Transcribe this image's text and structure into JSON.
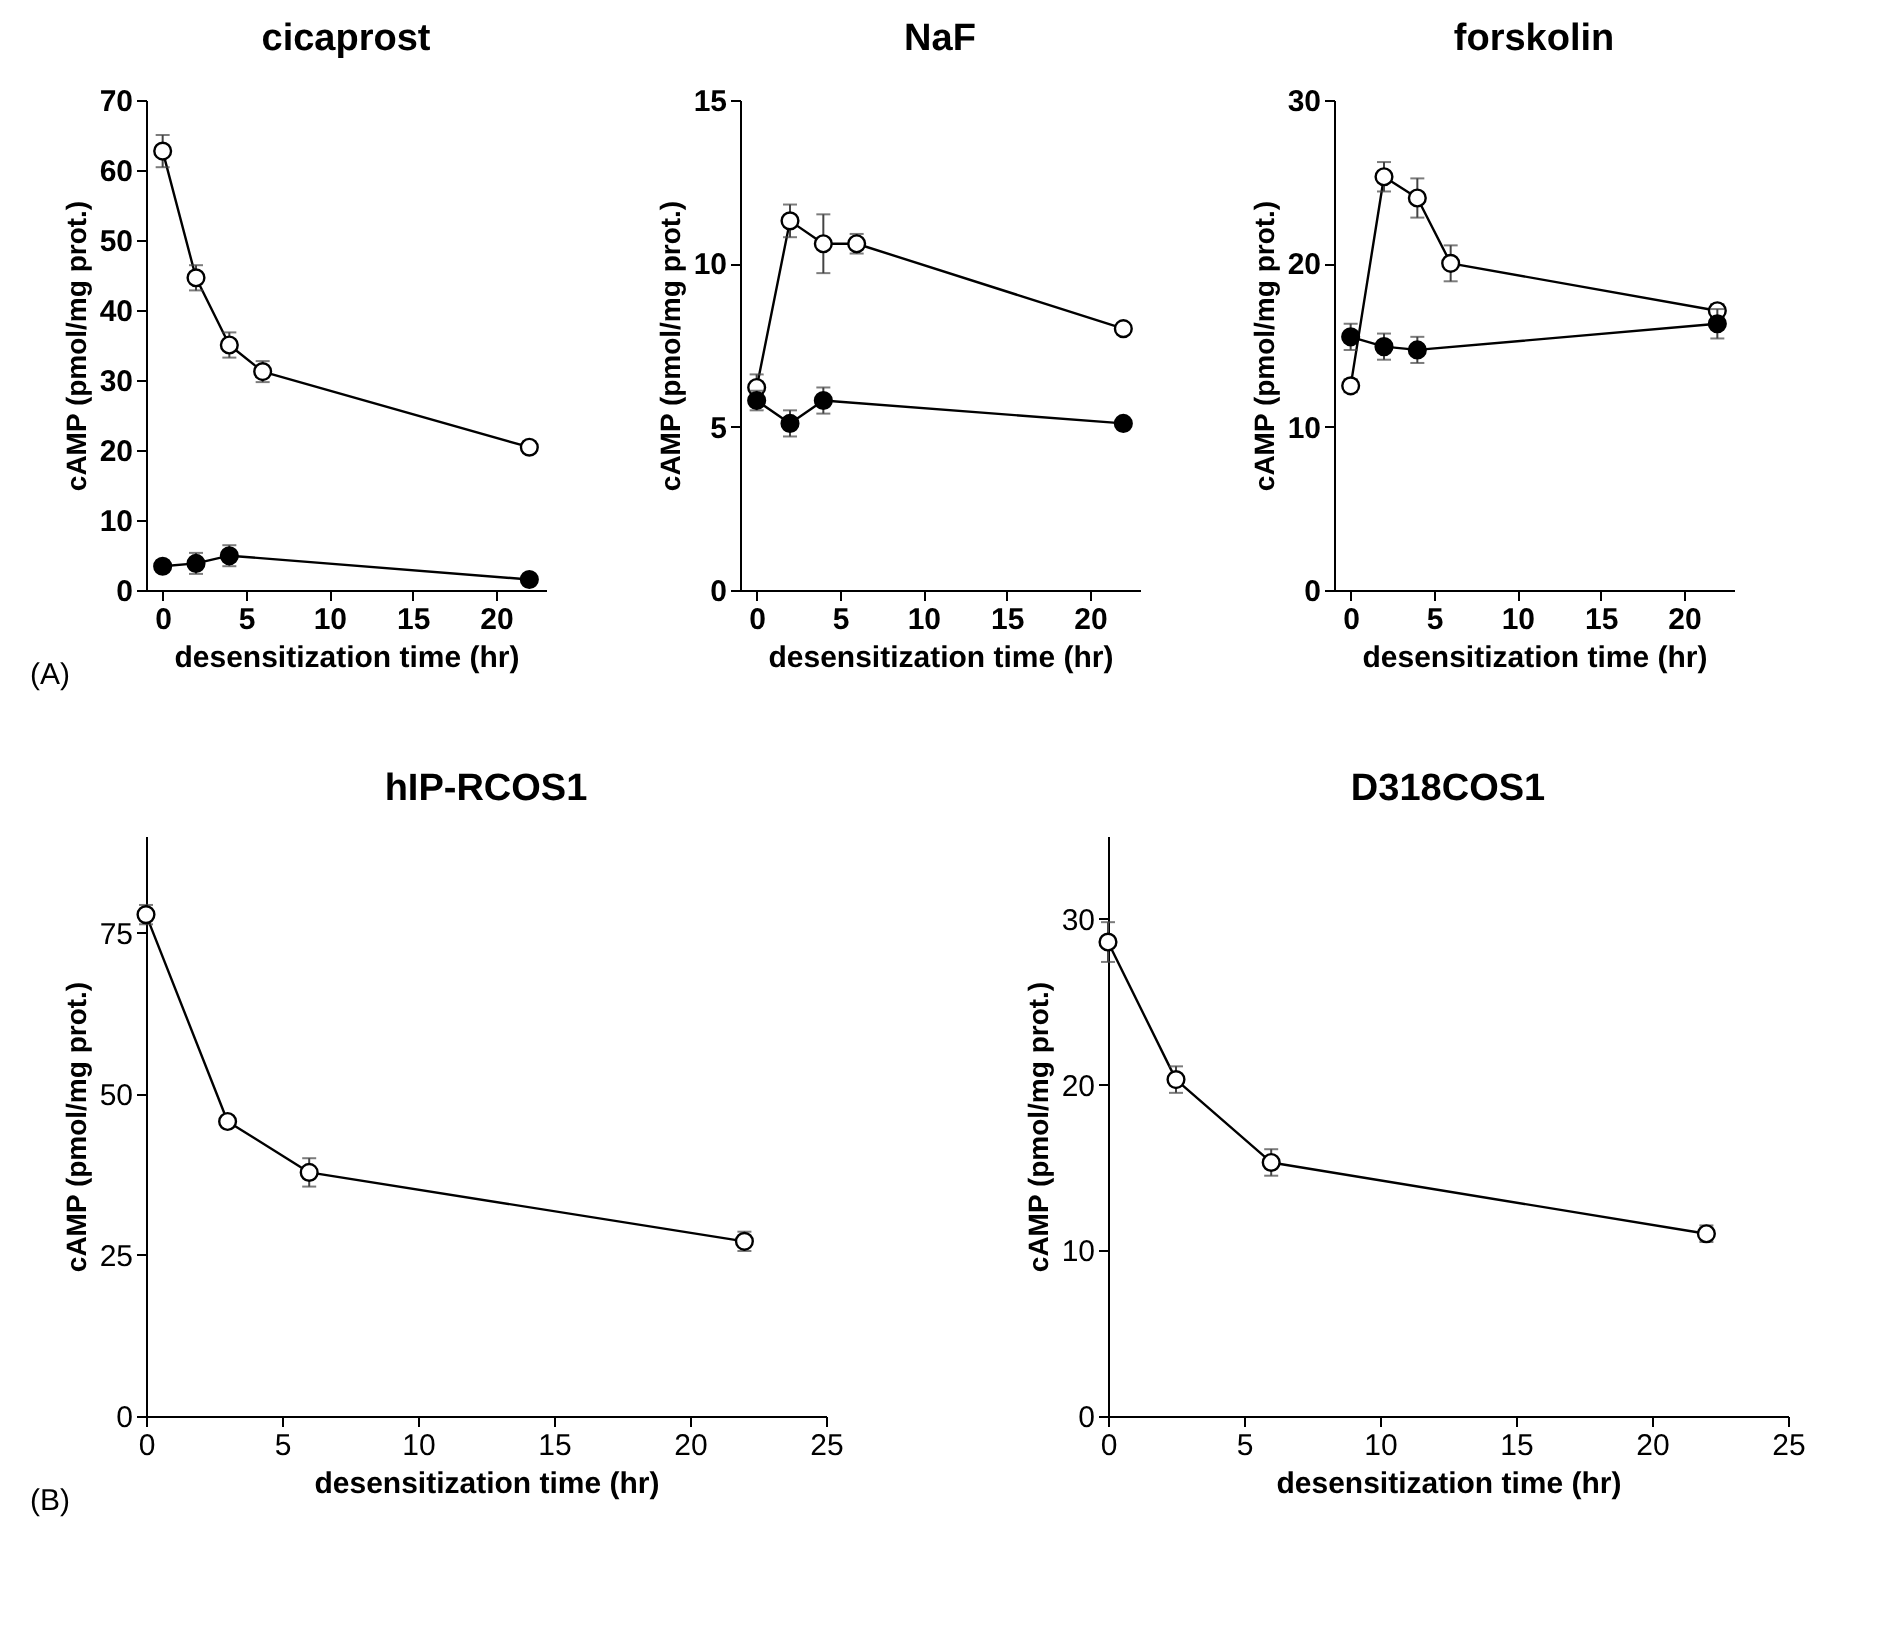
{
  "chart_data": [
    {
      "type": "line",
      "title": "cicaprost",
      "xlabel": "desensitization time (hr)",
      "ylabel": "cAMP (pmol/mg prot.)",
      "xlim": [
        -1,
        23
      ],
      "xticks": [
        0,
        5,
        10,
        15,
        20
      ],
      "ylim": [
        0,
        70
      ],
      "yticks": [
        0,
        10,
        20,
        30,
        40,
        50,
        60,
        70
      ],
      "marker": "circle",
      "annotations": [
        "(A)"
      ],
      "series": [
        {
          "color": "#ffffff",
          "x": [
            0,
            2,
            4,
            6,
            22
          ],
          "values": [
            62.7,
            44.6,
            35,
            31.2,
            20.4
          ],
          "errors": [
            2.3,
            1.8,
            1.8,
            1.5,
            0.8
          ]
        },
        {
          "color": "#000000",
          "x": [
            0,
            2,
            4,
            22
          ],
          "values": [
            3.4,
            3.8,
            4.9,
            1.5
          ],
          "errors": [
            0.8,
            1.5,
            1.5,
            0.5
          ]
        }
      ]
    },
    {
      "type": "line",
      "title": "NaF",
      "xlabel": "desensitization time (hr)",
      "ylabel": "cAMP (pmol/mg prot.)",
      "xlim": [
        -1,
        23
      ],
      "xticks": [
        0,
        5,
        10,
        15,
        20
      ],
      "ylim": [
        0,
        15
      ],
      "yticks": [
        0,
        5,
        10,
        15
      ],
      "marker": "circle",
      "series": [
        {
          "color": "#ffffff",
          "x": [
            0,
            2,
            4,
            6,
            22
          ],
          "values": [
            6.2,
            11.3,
            10.6,
            10.6,
            8.0
          ],
          "errors": [
            0.4,
            0.5,
            0.9,
            0.3,
            0.15
          ]
        },
        {
          "color": "#000000",
          "x": [
            0,
            2,
            4,
            22
          ],
          "values": [
            5.8,
            5.1,
            5.8,
            5.1
          ],
          "errors": [
            0.3,
            0.4,
            0.4,
            0.1
          ]
        }
      ]
    },
    {
      "type": "line",
      "title": "forskolin",
      "xlabel": "desensitization time (hr)",
      "ylabel": "cAMP (pmol/mg prot.)",
      "xlim": [
        -1,
        23
      ],
      "xticks": [
        0,
        5,
        10,
        15,
        20
      ],
      "ylim": [
        0,
        30
      ],
      "yticks": [
        0,
        10,
        20,
        30
      ],
      "marker": "circle",
      "series": [
        {
          "color": "#ffffff",
          "x": [
            0,
            2,
            4,
            6,
            22
          ],
          "values": [
            12.5,
            25.3,
            24.0,
            20.0,
            17.1
          ],
          "errors": [
            0.4,
            0.9,
            1.2,
            1.1,
            0.4
          ]
        },
        {
          "color": "#000000",
          "x": [
            0,
            2,
            4,
            22
          ],
          "values": [
            15.5,
            14.9,
            14.7,
            16.3
          ],
          "errors": [
            0.8,
            0.8,
            0.8,
            0.9
          ]
        }
      ]
    },
    {
      "type": "line",
      "title": "hIP-RCOS1",
      "xlabel": "desensitization time (hr)",
      "ylabel": "cAMP (pmol/mg prot.)",
      "xlim": [
        0,
        25
      ],
      "xticks": [
        0,
        5,
        10,
        15,
        20,
        25
      ],
      "ylim": [
        0,
        90
      ],
      "yticks": [
        0,
        25,
        50,
        75
      ],
      "marker": "circle",
      "annotations": [
        "(B)"
      ],
      "series": [
        {
          "color": "#ffffff",
          "x": [
            0,
            3,
            6,
            22
          ],
          "values": [
            77.8,
            45.7,
            37.8,
            27.1
          ],
          "errors": [
            1.5,
            0.8,
            2.2,
            1.5
          ]
        }
      ]
    },
    {
      "type": "line",
      "title": "D318COS1",
      "xlabel": "desensitization time (hr)",
      "ylabel": "cAMP (pmol/mg prot.)",
      "xlim": [
        0,
        25
      ],
      "xticks": [
        0,
        5,
        10,
        15,
        20,
        25
      ],
      "ylim": [
        0,
        35
      ],
      "yticks": [
        0,
        10,
        20,
        30
      ],
      "marker": "circle",
      "series": [
        {
          "color": "#ffffff",
          "x": [
            0,
            2.5,
            6,
            22
          ],
          "values": [
            28.6,
            20.3,
            15.3,
            11.0
          ],
          "errors": [
            1.2,
            0.8,
            0.8,
            0.5
          ]
        }
      ]
    }
  ]
}
